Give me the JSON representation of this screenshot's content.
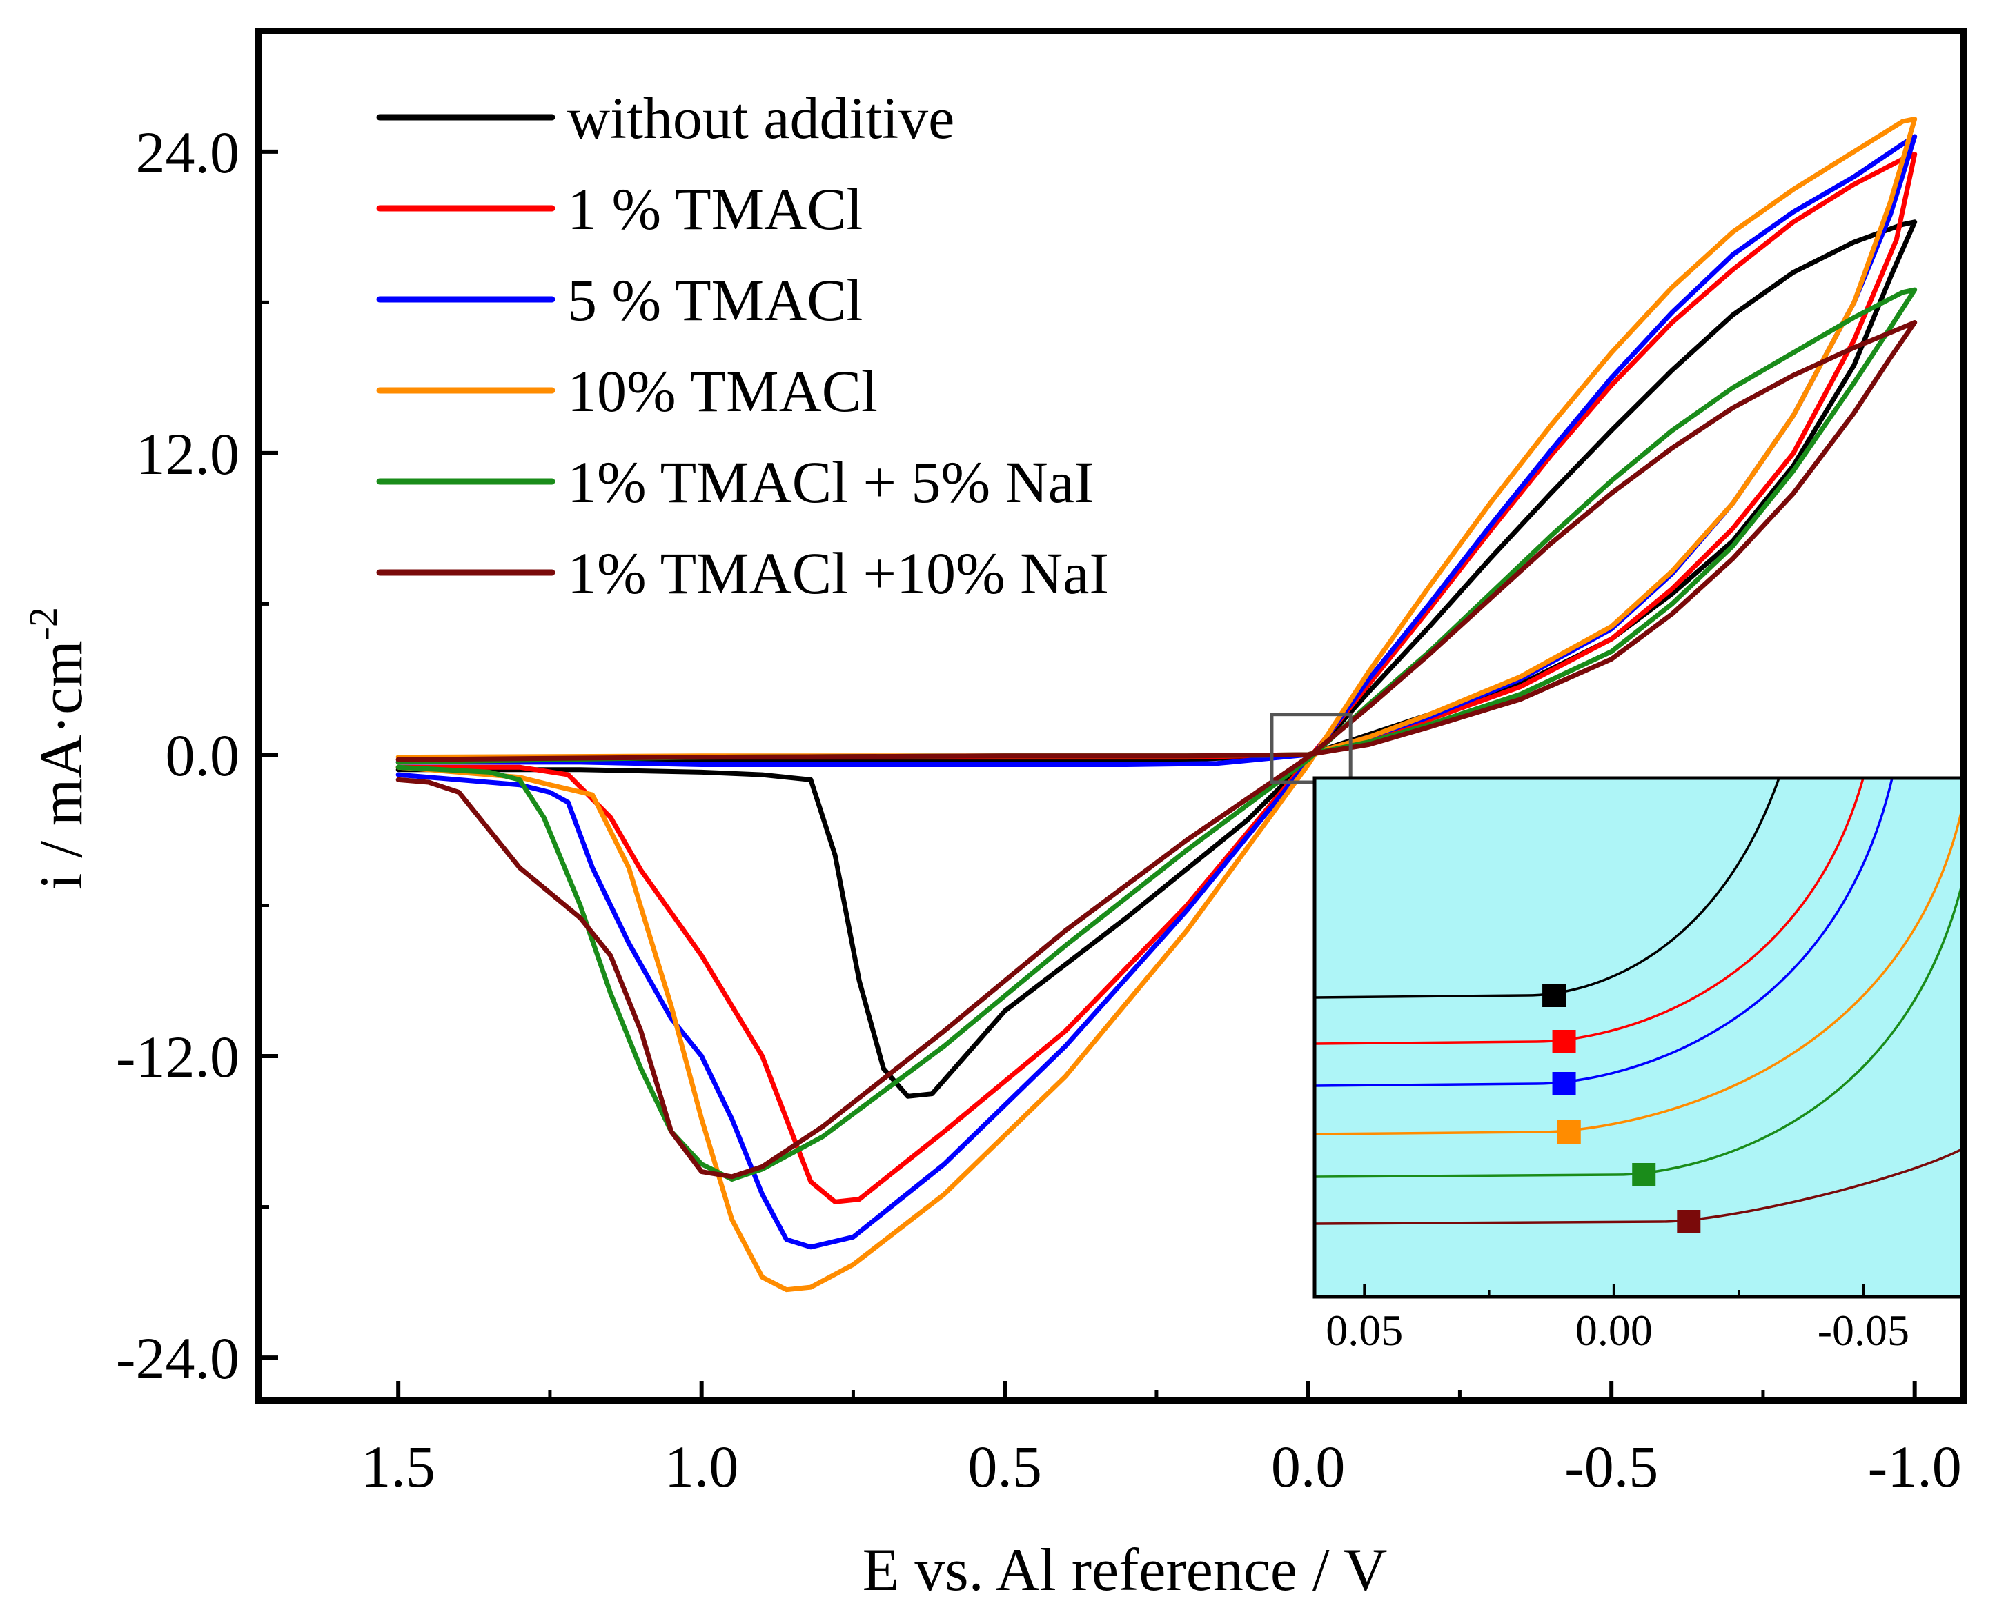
{
  "chart_data": {
    "type": "line",
    "title": "",
    "xlabel": "E vs. Al reference / V",
    "ylabel": "i / mA·cm",
    "ylabel_sup": "-2",
    "x_reversed": true,
    "xlim": [
      1.73,
      -1.08
    ],
    "ylim": [
      -25.7,
      28.8
    ],
    "x_ticks": [
      1.5,
      1.0,
      0.5,
      0.0,
      -0.5,
      -1.0
    ],
    "x_tick_labels": [
      "1.5",
      "1.0",
      "0.5",
      "0.0",
      "-0.5",
      "-1.0"
    ],
    "y_ticks": [
      24.0,
      12.0,
      0.0,
      -12.0,
      -24.0
    ],
    "y_tick_labels": [
      "24.0",
      "12.0",
      "0.0",
      "-12.0",
      "-24.0"
    ],
    "legend_position": "top-left",
    "zoom_box": {
      "x": [
        0.06,
        -0.07
      ],
      "y": [
        -1.1,
        1.6
      ]
    },
    "series": [
      {
        "name": "without additive",
        "color": "#000000",
        "points": [
          [
            1.5,
            -0.6
          ],
          [
            1.2,
            -0.6
          ],
          [
            1.0,
            -0.7
          ],
          [
            0.9,
            -0.8
          ],
          [
            0.82,
            -1.0
          ],
          [
            0.78,
            -4.0
          ],
          [
            0.74,
            -9.0
          ],
          [
            0.7,
            -12.5
          ],
          [
            0.66,
            -13.6
          ],
          [
            0.62,
            -13.5
          ],
          [
            0.5,
            -10.2
          ],
          [
            0.3,
            -6.5
          ],
          [
            0.1,
            -2.6
          ],
          [
            0.0,
            -0.2
          ],
          [
            -0.1,
            2.5
          ],
          [
            -0.2,
            5.1
          ],
          [
            -0.3,
            7.8
          ],
          [
            -0.4,
            10.4
          ],
          [
            -0.5,
            12.9
          ],
          [
            -0.6,
            15.3
          ],
          [
            -0.7,
            17.5
          ],
          [
            -0.8,
            19.2
          ],
          [
            -0.9,
            20.4
          ],
          [
            -0.98,
            21.1
          ],
          [
            -1.0,
            21.2
          ],
          [
            -0.96,
            19.0
          ],
          [
            -0.9,
            15.5
          ],
          [
            -0.8,
            11.5
          ],
          [
            -0.7,
            8.5
          ],
          [
            -0.6,
            6.4
          ],
          [
            -0.5,
            4.6
          ],
          [
            -0.35,
            2.8
          ],
          [
            -0.2,
            1.6
          ],
          [
            -0.1,
            0.8
          ],
          [
            0.0,
            0.0
          ],
          [
            0.2,
            -0.2
          ],
          [
            0.5,
            -0.2
          ],
          [
            1.0,
            -0.2
          ],
          [
            1.5,
            -0.3
          ]
        ]
      },
      {
        "name": "1 % TMACl",
        "color": "#ff0000",
        "points": [
          [
            1.5,
            -0.5
          ],
          [
            1.3,
            -0.5
          ],
          [
            1.22,
            -0.8
          ],
          [
            1.15,
            -2.5
          ],
          [
            1.1,
            -4.6
          ],
          [
            1.0,
            -8.0
          ],
          [
            0.95,
            -10.0
          ],
          [
            0.9,
            -12.0
          ],
          [
            0.86,
            -14.5
          ],
          [
            0.82,
            -17.0
          ],
          [
            0.78,
            -17.8
          ],
          [
            0.74,
            -17.7
          ],
          [
            0.6,
            -15.0
          ],
          [
            0.4,
            -11.0
          ],
          [
            0.2,
            -6.0
          ],
          [
            0.0,
            -0.2
          ],
          [
            -0.1,
            2.8
          ],
          [
            -0.2,
            5.8
          ],
          [
            -0.3,
            8.9
          ],
          [
            -0.4,
            11.9
          ],
          [
            -0.5,
            14.7
          ],
          [
            -0.6,
            17.2
          ],
          [
            -0.7,
            19.3
          ],
          [
            -0.8,
            21.2
          ],
          [
            -0.9,
            22.7
          ],
          [
            -0.98,
            23.7
          ],
          [
            -1.0,
            23.9
          ],
          [
            -0.97,
            20.5
          ],
          [
            -0.9,
            16.5
          ],
          [
            -0.8,
            12.0
          ],
          [
            -0.7,
            9.0
          ],
          [
            -0.6,
            6.6
          ],
          [
            -0.5,
            4.6
          ],
          [
            -0.35,
            2.7
          ],
          [
            -0.2,
            1.4
          ],
          [
            -0.1,
            0.6
          ],
          [
            0.0,
            0.0
          ],
          [
            0.2,
            -0.1
          ],
          [
            0.5,
            -0.1
          ],
          [
            1.0,
            -0.1
          ],
          [
            1.5,
            -0.2
          ]
        ]
      },
      {
        "name": "5 % TMACl",
        "color": "#0000ff",
        "points": [
          [
            1.5,
            -0.8
          ],
          [
            1.3,
            -1.2
          ],
          [
            1.25,
            -1.5
          ],
          [
            1.22,
            -1.9
          ],
          [
            1.18,
            -4.5
          ],
          [
            1.12,
            -7.5
          ],
          [
            1.05,
            -10.5
          ],
          [
            1.0,
            -12.0
          ],
          [
            0.95,
            -14.5
          ],
          [
            0.9,
            -17.5
          ],
          [
            0.86,
            -19.3
          ],
          [
            0.82,
            -19.6
          ],
          [
            0.75,
            -19.2
          ],
          [
            0.6,
            -16.3
          ],
          [
            0.4,
            -11.6
          ],
          [
            0.2,
            -6.2
          ],
          [
            0.0,
            -0.3
          ],
          [
            -0.1,
            3.0
          ],
          [
            -0.2,
            6.0
          ],
          [
            -0.3,
            9.1
          ],
          [
            -0.4,
            12.1
          ],
          [
            -0.5,
            15.0
          ],
          [
            -0.6,
            17.6
          ],
          [
            -0.7,
            19.9
          ],
          [
            -0.8,
            21.6
          ],
          [
            -0.9,
            23.0
          ],
          [
            -0.98,
            24.3
          ],
          [
            -1.0,
            24.6
          ],
          [
            -0.96,
            21.5
          ],
          [
            -0.9,
            18.0
          ],
          [
            -0.8,
            13.5
          ],
          [
            -0.7,
            10.0
          ],
          [
            -0.6,
            7.2
          ],
          [
            -0.5,
            5.0
          ],
          [
            -0.35,
            3.0
          ],
          [
            -0.2,
            1.5
          ],
          [
            -0.1,
            0.7
          ],
          [
            0.0,
            0.0
          ],
          [
            0.15,
            -0.35
          ],
          [
            0.3,
            -0.4
          ],
          [
            0.5,
            -0.4
          ],
          [
            0.8,
            -0.4
          ],
          [
            1.0,
            -0.4
          ],
          [
            1.2,
            -0.3
          ],
          [
            1.5,
            -0.3
          ]
        ]
      },
      {
        "name": "10% TMACl",
        "color": "#ff8c00",
        "points": [
          [
            1.5,
            -0.5
          ],
          [
            1.3,
            -0.9
          ],
          [
            1.25,
            -1.2
          ],
          [
            1.18,
            -1.6
          ],
          [
            1.12,
            -4.5
          ],
          [
            1.05,
            -10.0
          ],
          [
            1.0,
            -14.5
          ],
          [
            0.95,
            -18.5
          ],
          [
            0.9,
            -20.8
          ],
          [
            0.86,
            -21.3
          ],
          [
            0.82,
            -21.2
          ],
          [
            0.75,
            -20.3
          ],
          [
            0.6,
            -17.5
          ],
          [
            0.4,
            -12.8
          ],
          [
            0.2,
            -7.0
          ],
          [
            0.0,
            -0.4
          ],
          [
            -0.1,
            3.3
          ],
          [
            -0.2,
            6.7
          ],
          [
            -0.3,
            10.0
          ],
          [
            -0.4,
            13.1
          ],
          [
            -0.5,
            16.0
          ],
          [
            -0.6,
            18.6
          ],
          [
            -0.7,
            20.8
          ],
          [
            -0.8,
            22.5
          ],
          [
            -0.9,
            24.0
          ],
          [
            -0.98,
            25.2
          ],
          [
            -1.0,
            25.3
          ],
          [
            -0.96,
            22.0
          ],
          [
            -0.9,
            18.0
          ],
          [
            -0.8,
            13.5
          ],
          [
            -0.7,
            10.0
          ],
          [
            -0.6,
            7.3
          ],
          [
            -0.5,
            5.1
          ],
          [
            -0.35,
            3.1
          ],
          [
            -0.2,
            1.6
          ],
          [
            -0.1,
            0.7
          ],
          [
            0.0,
            0.0
          ],
          [
            0.2,
            -0.05
          ],
          [
            0.5,
            -0.05
          ],
          [
            1.0,
            -0.05
          ],
          [
            1.5,
            -0.1
          ]
        ]
      },
      {
        "name": "1% TMACl + 5% NaI",
        "color": "#1a8c1a",
        "points": [
          [
            1.5,
            -0.5
          ],
          [
            1.35,
            -0.7
          ],
          [
            1.3,
            -1.0
          ],
          [
            1.26,
            -2.5
          ],
          [
            1.2,
            -6.0
          ],
          [
            1.15,
            -9.5
          ],
          [
            1.1,
            -12.5
          ],
          [
            1.05,
            -15.0
          ],
          [
            1.0,
            -16.3
          ],
          [
            0.95,
            -16.9
          ],
          [
            0.9,
            -16.5
          ],
          [
            0.8,
            -15.2
          ],
          [
            0.6,
            -11.6
          ],
          [
            0.4,
            -7.6
          ],
          [
            0.2,
            -3.8
          ],
          [
            0.0,
            -0.2
          ],
          [
            -0.1,
            2.0
          ],
          [
            -0.2,
            4.1
          ],
          [
            -0.3,
            6.4
          ],
          [
            -0.4,
            8.7
          ],
          [
            -0.5,
            10.9
          ],
          [
            -0.6,
            12.9
          ],
          [
            -0.7,
            14.6
          ],
          [
            -0.8,
            16.0
          ],
          [
            -0.9,
            17.4
          ],
          [
            -0.98,
            18.4
          ],
          [
            -1.0,
            18.5
          ],
          [
            -0.96,
            17.0
          ],
          [
            -0.9,
            14.8
          ],
          [
            -0.8,
            11.3
          ],
          [
            -0.7,
            8.3
          ],
          [
            -0.6,
            6.0
          ],
          [
            -0.5,
            4.1
          ],
          [
            -0.35,
            2.4
          ],
          [
            -0.2,
            1.2
          ],
          [
            -0.1,
            0.5
          ],
          [
            0.0,
            0.0
          ],
          [
            0.2,
            -0.05
          ],
          [
            0.5,
            -0.05
          ],
          [
            1.0,
            -0.1
          ],
          [
            1.5,
            -0.3
          ]
        ]
      },
      {
        "name": "1% TMACl +10% NaI",
        "color": "#7a0a0a",
        "points": [
          [
            1.5,
            -1.0
          ],
          [
            1.45,
            -1.1
          ],
          [
            1.4,
            -1.5
          ],
          [
            1.35,
            -3.0
          ],
          [
            1.3,
            -4.5
          ],
          [
            1.25,
            -5.5
          ],
          [
            1.2,
            -6.5
          ],
          [
            1.15,
            -8.0
          ],
          [
            1.1,
            -11.0
          ],
          [
            1.05,
            -15.0
          ],
          [
            1.0,
            -16.6
          ],
          [
            0.95,
            -16.8
          ],
          [
            0.9,
            -16.4
          ],
          [
            0.8,
            -14.8
          ],
          [
            0.6,
            -11.0
          ],
          [
            0.4,
            -7.0
          ],
          [
            0.2,
            -3.4
          ],
          [
            0.0,
            -0.1
          ],
          [
            -0.1,
            1.9
          ],
          [
            -0.2,
            4.0
          ],
          [
            -0.3,
            6.2
          ],
          [
            -0.4,
            8.4
          ],
          [
            -0.5,
            10.4
          ],
          [
            -0.6,
            12.2
          ],
          [
            -0.7,
            13.8
          ],
          [
            -0.8,
            15.1
          ],
          [
            -0.9,
            16.2
          ],
          [
            -0.98,
            17.0
          ],
          [
            -1.0,
            17.2
          ],
          [
            -0.96,
            15.8
          ],
          [
            -0.9,
            13.6
          ],
          [
            -0.8,
            10.4
          ],
          [
            -0.7,
            7.8
          ],
          [
            -0.6,
            5.6
          ],
          [
            -0.5,
            3.8
          ],
          [
            -0.35,
            2.2
          ],
          [
            -0.2,
            1.1
          ],
          [
            -0.1,
            0.4
          ],
          [
            0.0,
            0.0
          ],
          [
            0.2,
            -0.05
          ],
          [
            0.5,
            -0.05
          ],
          [
            1.0,
            -0.1
          ],
          [
            1.5,
            -0.2
          ]
        ]
      }
    ],
    "inset": {
      "x_ticks": [
        0.05,
        0.0,
        -0.05
      ],
      "x_tick_labels": [
        "0.05",
        "0.00",
        "-0.05"
      ],
      "xlim": [
        0.06,
        -0.07
      ],
      "background": "#aef5f7",
      "onset_markers": [
        {
          "series": "without additive",
          "x": 0.012,
          "color": "#000000"
        },
        {
          "series": "1 % TMACl",
          "x": 0.01,
          "color": "#ff0000"
        },
        {
          "series": "5 % TMACl",
          "x": 0.01,
          "color": "#0000ff"
        },
        {
          "series": "10% TMACl",
          "x": 0.009,
          "color": "#ff8c00"
        },
        {
          "series": "1% TMACl + 5% NaI",
          "x": -0.006,
          "color": "#1a8c1a"
        },
        {
          "series": "1% TMACl +10% NaI",
          "x": -0.015,
          "color": "#7a0a0a"
        }
      ]
    }
  }
}
